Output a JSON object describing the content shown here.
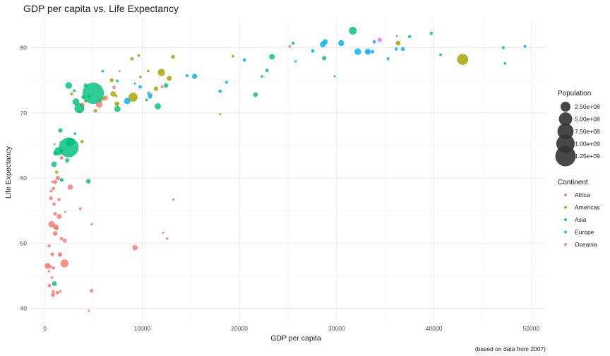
{
  "chart_data": {
    "type": "scatter",
    "title": "GDP per capita vs. Life Expectancy",
    "xlabel": "GDP per capita",
    "ylabel": "Life Expectancy",
    "caption": "(based on data from 2007)",
    "xlim": [
      -1500,
      51500
    ],
    "ylim": [
      38,
      84.5
    ],
    "x_ticks": [
      0,
      10000,
      20000,
      30000,
      40000,
      50000
    ],
    "y_ticks": [
      40,
      50,
      60,
      70,
      80
    ],
    "grid": true,
    "legend_position": "right",
    "size_legend": {
      "title": "Population",
      "entries": [
        {
          "label": "2.50e+08",
          "value": 250000000
        },
        {
          "label": "5.00e+08",
          "value": 500000000
        },
        {
          "label": "7.50e+08",
          "value": 750000000
        },
        {
          "label": "1.00e+09",
          "value": 1000000000
        },
        {
          "label": "1.25e+09",
          "value": 1250000000
        }
      ]
    },
    "color_legend": {
      "title": "Continent",
      "entries": [
        {
          "label": "Africa",
          "color": "#F8766D"
        },
        {
          "label": "Americas",
          "color": "#A3A500"
        },
        {
          "label": "Asia",
          "color": "#00BF7D"
        },
        {
          "label": "Europe",
          "color": "#00B0F6"
        },
        {
          "label": "Oceania",
          "color": "#E76BF3"
        }
      ]
    },
    "series": [
      {
        "name": "Africa",
        "color": "#F8766D",
        "points": [
          [
            6223,
            72.3,
            33
          ],
          [
            4797,
            42.7,
            12
          ],
          [
            1441,
            56.7,
            8
          ],
          [
            12570,
            50.7,
            2
          ],
          [
            1217,
            52.3,
            15
          ],
          [
            430,
            49.6,
            8
          ],
          [
            2042,
            50.4,
            18
          ],
          [
            706,
            44.7,
            4
          ],
          [
            1704,
            50.7,
            10
          ],
          [
            986,
            65.2,
            0.7
          ],
          [
            278,
            46.5,
            64
          ],
          [
            3633,
            55.3,
            4
          ],
          [
            1545,
            48.3,
            18
          ],
          [
            2082,
            54.8,
            0.5
          ],
          [
            5581,
            71.3,
            80
          ],
          [
            12154,
            51.6,
            0.6
          ],
          [
            641,
            58.0,
            5
          ],
          [
            691,
            52.9,
            77
          ],
          [
            13206,
            56.7,
            1.5
          ],
          [
            753,
            59.4,
            1.7
          ],
          [
            1327,
            60.0,
            23
          ],
          [
            943,
            56.0,
            9
          ],
          [
            580,
            46.4,
            1.5
          ],
          [
            1463,
            54.1,
            35
          ],
          [
            1569,
            42.6,
            2
          ],
          [
            415,
            45.7,
            3
          ],
          [
            12057,
            74.0,
            6
          ],
          [
            1045,
            59.4,
            19
          ],
          [
            759,
            48.3,
            13
          ],
          [
            1042,
            54.5,
            12
          ],
          [
            1803,
            64.2,
            3
          ],
          [
            10957,
            72.8,
            1.2
          ],
          [
            3820,
            71.2,
            33
          ],
          [
            824,
            42.1,
            20
          ],
          [
            4811,
            52.9,
            2
          ],
          [
            620,
            56.9,
            12
          ],
          [
            2014,
            46.9,
            135
          ],
          [
            7670,
            76.4,
            0.8
          ],
          [
            863,
            46.2,
            9
          ],
          [
            1598,
            65.5,
            0.2
          ],
          [
            1712,
            63.1,
            12
          ],
          [
            862,
            42.6,
            6
          ],
          [
            9270,
            49.3,
            44
          ],
          [
            2602,
            58.6,
            42
          ],
          [
            4513,
            39.6,
            1.1
          ],
          [
            1107,
            52.5,
            38
          ],
          [
            883,
            58.4,
            6
          ],
          [
            7093,
            73.9,
            10
          ],
          [
            1056,
            51.5,
            29
          ],
          [
            1271,
            42.4,
            11
          ],
          [
            470,
            43.5,
            12
          ],
          [
            1544,
            48.2,
            10
          ]
        ]
      },
      {
        "name": "Americas",
        "color": "#A3A500",
        "points": [
          [
            12779,
            75.3,
            40
          ],
          [
            3822,
            65.6,
            9
          ],
          [
            9066,
            72.4,
            190
          ],
          [
            36319,
            80.7,
            33
          ],
          [
            13172,
            78.6,
            16
          ],
          [
            7007,
            72.9,
            44
          ],
          [
            9645,
            78.8,
            4
          ],
          [
            8948,
            78.3,
            11
          ],
          [
            6025,
            72.2,
            9
          ],
          [
            6873,
            74.99,
            14
          ],
          [
            5728,
            71.9,
            7
          ],
          [
            5186,
            70.3,
            13
          ],
          [
            1202,
            60.9,
            8
          ],
          [
            3548,
            70.2,
            7
          ],
          [
            7321,
            72.6,
            2.8
          ],
          [
            11978,
            76.2,
            108
          ],
          [
            2749,
            72.9,
            5.7
          ],
          [
            9809,
            75.5,
            3.2
          ],
          [
            4173,
            71.8,
            6.7
          ],
          [
            7409,
            71.4,
            28.7
          ],
          [
            19329,
            78.7,
            4
          ],
          [
            18008,
            69.8,
            1
          ],
          [
            42952,
            78.2,
            301
          ],
          [
            10611,
            76.4,
            3.4
          ],
          [
            11416,
            73.7,
            26
          ]
        ]
      },
      {
        "name": "Asia",
        "color": "#00BF7D",
        "points": [
          [
            975,
            43.8,
            32
          ],
          [
            29796,
            75.6,
            0.7
          ],
          [
            1391,
            64.1,
            150
          ],
          [
            1714,
            59.7,
            14
          ],
          [
            4959,
            73.0,
            1319
          ],
          [
            39725,
            82.2,
            7
          ],
          [
            2452,
            64.7,
            1110
          ],
          [
            3541,
            70.7,
            224
          ],
          [
            11606,
            71.0,
            69
          ],
          [
            4471,
            59.5,
            27.5
          ],
          [
            25523,
            80.7,
            6.4
          ],
          [
            31656,
            82.6,
            127
          ],
          [
            4519,
            72.5,
            6
          ],
          [
            1593,
            67.3,
            23
          ],
          [
            23348,
            78.6,
            49
          ],
          [
            47307,
            77.6,
            2.5
          ],
          [
            10461,
            72.0,
            4
          ],
          [
            12452,
            74.2,
            24
          ],
          [
            3095,
            66.8,
            2.9
          ],
          [
            944,
            62.1,
            47.8
          ],
          [
            1091,
            63.8,
            28.9
          ],
          [
            22316,
            75.6,
            3.2
          ],
          [
            2606,
            65.5,
            169
          ],
          [
            3190,
            71.7,
            91
          ],
          [
            21655,
            72.8,
            27.6
          ],
          [
            47143,
            80.0,
            4.6
          ],
          [
            3970,
            72.4,
            20
          ],
          [
            4185,
            74.2,
            19.3
          ],
          [
            28718,
            78.4,
            23.2
          ],
          [
            7458,
            70.6,
            65
          ],
          [
            2442,
            74.2,
            85
          ],
          [
            3025,
            73.4,
            4
          ],
          [
            2281,
            62.7,
            22
          ]
        ]
      },
      {
        "name": "Europe",
        "color": "#00B0F6",
        "points": [
          [
            5937,
            76.4,
            3.6
          ],
          [
            36126,
            79.8,
            8.2
          ],
          [
            33693,
            79.4,
            10.4
          ],
          [
            7446,
            74.9,
            4.5
          ],
          [
            10681,
            73.0,
            7.3
          ],
          [
            14619,
            75.7,
            4.5
          ],
          [
            22833,
            76.5,
            10.2
          ],
          [
            35278,
            78.3,
            5.5
          ],
          [
            33207,
            79.3,
            5.2
          ],
          [
            30470,
            80.7,
            61
          ],
          [
            32170,
            79.4,
            82
          ],
          [
            27538,
            79.5,
            10.7
          ],
          [
            18009,
            73.3,
            10
          ],
          [
            36181,
            81.8,
            0.3
          ],
          [
            40676,
            78.9,
            4.1
          ],
          [
            28570,
            80.5,
            58
          ],
          [
            9254,
            74.5,
            0.7
          ],
          [
            36798,
            79.8,
            16.6
          ],
          [
            49357,
            80.2,
            4.6
          ],
          [
            15390,
            75.6,
            38.5
          ],
          [
            20510,
            78.1,
            10.6
          ],
          [
            10808,
            72.5,
            22.3
          ],
          [
            9787,
            74.0,
            10.2
          ],
          [
            18678,
            74.7,
            5.4
          ],
          [
            25768,
            77.9,
            2
          ],
          [
            28821,
            80.9,
            40.4
          ],
          [
            33860,
            80.9,
            9
          ],
          [
            37506,
            81.7,
            7.6
          ],
          [
            8458,
            71.8,
            71
          ],
          [
            33203,
            79.4,
            60.8
          ]
        ]
      },
      {
        "name": "Oceania",
        "color": "#E76BF3",
        "points": [
          [
            34435,
            81.2,
            20.4
          ],
          [
            25185,
            80.2,
            4.1
          ]
        ]
      }
    ]
  }
}
